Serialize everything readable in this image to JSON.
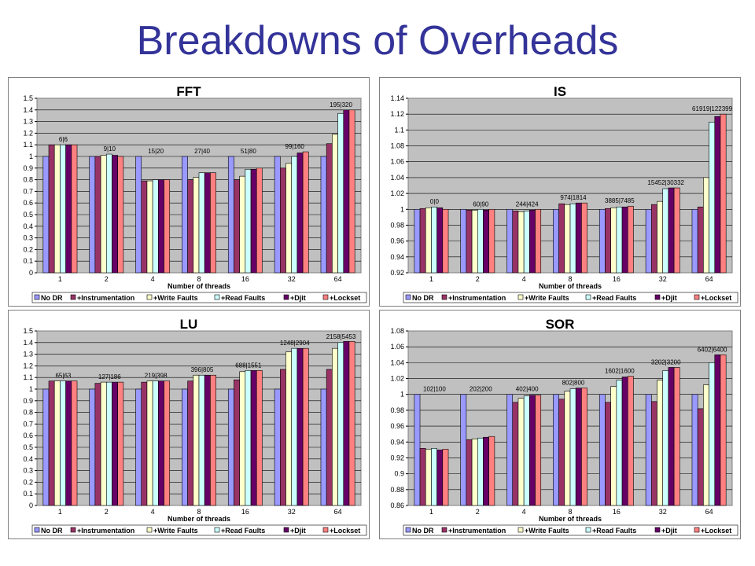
{
  "slide": {
    "title": "Breakdowns of Overheads"
  },
  "colors": {
    "plot_bg": "#c0c0c0",
    "series": [
      "#9999ff",
      "#993366",
      "#ffffcc",
      "#ccffff",
      "#660066",
      "#ff8080"
    ]
  },
  "chart_data": [
    {
      "type": "bar",
      "title": "FFT",
      "xlabel": "Number of threads",
      "ylabel": "",
      "categories": [
        "1",
        "2",
        "4",
        "8",
        "16",
        "32",
        "64"
      ],
      "ylim": [
        0,
        1.5
      ],
      "yticks": [
        "0",
        "0.1",
        "0.2",
        "0.3",
        "0.4",
        "0.5",
        "0.6",
        "0.7",
        "0.8",
        "0.9",
        "1",
        "1.1",
        "1.2",
        "1.3",
        "1.4",
        "1.5"
      ],
      "annotations": [
        "6|6",
        "9|10",
        "15|20",
        "27|40",
        "51|80",
        "99|160",
        "195|320"
      ],
      "legend_position": "bottom",
      "series": [
        {
          "name": "No DR",
          "values": [
            1,
            1,
            1,
            1,
            1,
            1,
            1
          ]
        },
        {
          "name": "+Instrumentation",
          "values": [
            1.1,
            1.0,
            0.79,
            0.8,
            0.8,
            0.9,
            1.11
          ]
        },
        {
          "name": "+Write Faults",
          "values": [
            1.1,
            1.01,
            0.79,
            0.82,
            0.83,
            0.94,
            1.19
          ]
        },
        {
          "name": "+Read Faults",
          "values": [
            1.1,
            1.02,
            0.8,
            0.86,
            0.89,
            1.0,
            1.37
          ]
        },
        {
          "name": "+Djit",
          "values": [
            1.1,
            1.01,
            0.8,
            0.86,
            0.89,
            1.03,
            1.4
          ]
        },
        {
          "name": "+Lockset",
          "values": [
            1.1,
            1.0,
            0.8,
            0.86,
            0.9,
            1.04,
            1.4
          ]
        }
      ]
    },
    {
      "type": "bar",
      "title": "IS",
      "xlabel": "Number of threads",
      "ylabel": "",
      "categories": [
        "1",
        "2",
        "4",
        "8",
        "16",
        "32",
        "64"
      ],
      "ylim": [
        0.92,
        1.14
      ],
      "yticks": [
        "0.92",
        "0.94",
        "0.96",
        "0.98",
        "1",
        "1.02",
        "1.04",
        "1.06",
        "1.08",
        "1.1",
        "1.12",
        "1.14"
      ],
      "annotations": [
        "0|0",
        "60|90",
        "244|424",
        "974|1814",
        "3885|7485",
        "15452|30332",
        "61919|122399"
      ],
      "legend_position": "bottom",
      "series": [
        {
          "name": "No DR",
          "values": [
            1,
            1,
            1,
            1,
            1,
            1,
            1
          ]
        },
        {
          "name": "+Instrumentation",
          "values": [
            1.001,
            0.999,
            0.998,
            1.007,
            1.001,
            1.006,
            1.003
          ]
        },
        {
          "name": "+Write Faults",
          "values": [
            1.002,
            0.999,
            0.997,
            1.006,
            1.002,
            1.01,
            1.04
          ]
        },
        {
          "name": "+Read Faults",
          "values": [
            1.003,
            1.0,
            0.998,
            1.007,
            1.003,
            1.026,
            1.11
          ]
        },
        {
          "name": "+Djit",
          "values": [
            1.002,
            0.999,
            0.999,
            1.008,
            1.003,
            1.027,
            1.117
          ]
        },
        {
          "name": "+Lockset",
          "values": [
            1.0,
            1.0,
            1.0,
            1.008,
            1.004,
            1.027,
            1.12
          ]
        }
      ]
    },
    {
      "type": "bar",
      "title": "LU",
      "xlabel": "Number of threads",
      "ylabel": "",
      "categories": [
        "1",
        "2",
        "4",
        "8",
        "16",
        "32",
        "64"
      ],
      "ylim": [
        0,
        1.5
      ],
      "yticks": [
        "0",
        "0.1",
        "0.2",
        "0.3",
        "0.4",
        "0.5",
        "0.6",
        "0.7",
        "0.8",
        "0.9",
        "1",
        "1.1",
        "1.2",
        "1.3",
        "1.4",
        "1.5"
      ],
      "annotations": [
        "65|63",
        "127|186",
        "219|398",
        "396|805",
        "688|1551",
        "1248|2904",
        "2158|5453"
      ],
      "legend_position": "bottom",
      "series": [
        {
          "name": "No DR",
          "values": [
            1,
            1,
            1,
            1,
            1,
            1,
            1
          ]
        },
        {
          "name": "+Instrumentation",
          "values": [
            1.07,
            1.05,
            1.06,
            1.07,
            1.08,
            1.17,
            1.17
          ]
        },
        {
          "name": "+Write Faults",
          "values": [
            1.07,
            1.06,
            1.07,
            1.12,
            1.15,
            1.32,
            1.35
          ]
        },
        {
          "name": "+Read Faults",
          "values": [
            1.07,
            1.06,
            1.07,
            1.12,
            1.16,
            1.35,
            1.4
          ]
        },
        {
          "name": "+Djit",
          "values": [
            1.07,
            1.06,
            1.07,
            1.12,
            1.16,
            1.35,
            1.41
          ]
        },
        {
          "name": "+Lockset",
          "values": [
            1.07,
            1.06,
            1.07,
            1.12,
            1.16,
            1.35,
            1.41
          ]
        }
      ]
    },
    {
      "type": "bar",
      "title": "SOR",
      "xlabel": "Number of threads",
      "ylabel": "",
      "categories": [
        "1",
        "2",
        "4",
        "8",
        "16",
        "32",
        "64"
      ],
      "ylim": [
        0.86,
        1.08
      ],
      "yticks": [
        "0.86",
        "0.88",
        "0.9",
        "0.92",
        "0.94",
        "0.96",
        "0.98",
        "1",
        "1.02",
        "1.04",
        "1.06",
        "1.08"
      ],
      "annotations": [
        "102|100",
        "202|200",
        "402|400",
        "802|800",
        "1602|1600",
        "3202|3200",
        "6402|6400"
      ],
      "legend_position": "bottom",
      "series": [
        {
          "name": "No DR",
          "values": [
            1,
            1,
            1,
            1,
            1,
            1,
            1
          ]
        },
        {
          "name": "+Instrumentation",
          "values": [
            0.932,
            0.943,
            0.99,
            0.994,
            0.99,
            0.991,
            0.982
          ]
        },
        {
          "name": "+Write Faults",
          "values": [
            0.931,
            0.944,
            0.995,
            1.004,
            1.01,
            1.018,
            1.012
          ]
        },
        {
          "name": "+Read Faults",
          "values": [
            0.932,
            0.945,
            0.998,
            1.007,
            1.018,
            1.03,
            1.04
          ]
        },
        {
          "name": "+Djit",
          "values": [
            0.93,
            0.946,
            0.999,
            1.008,
            1.022,
            1.034,
            1.05
          ]
        },
        {
          "name": "+Lockset",
          "values": [
            0.931,
            0.947,
            0.999,
            1.008,
            1.023,
            1.034,
            1.05
          ]
        }
      ]
    }
  ]
}
